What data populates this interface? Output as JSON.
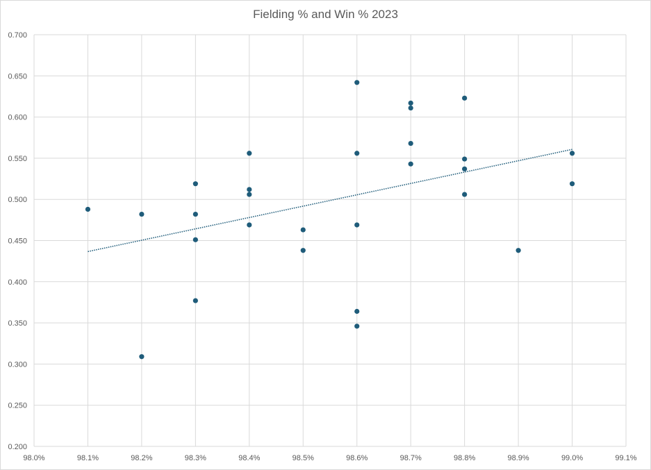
{
  "chart_data": {
    "type": "scatter",
    "title": "Fielding % and Win % 2023",
    "xlabel": "",
    "ylabel": "",
    "xlim": [
      98.0,
      99.1
    ],
    "ylim": [
      0.2,
      0.7
    ],
    "x_ticks": [
      "98.0%",
      "98.1%",
      "98.2%",
      "98.3%",
      "98.4%",
      "98.5%",
      "98.6%",
      "98.7%",
      "98.8%",
      "98.9%",
      "99.0%",
      "99.1%"
    ],
    "y_ticks": [
      "0.200",
      "0.250",
      "0.300",
      "0.350",
      "0.400",
      "0.450",
      "0.500",
      "0.550",
      "0.600",
      "0.650",
      "0.700"
    ],
    "grid": true,
    "legend": "none",
    "marker_color": "#1f5c7a",
    "trendline": {
      "type": "linear",
      "style": "dotted",
      "color": "#1f5c7a"
    },
    "series": [
      {
        "points": [
          {
            "x": 98.1,
            "y": 0.488
          },
          {
            "x": 98.2,
            "y": 0.482
          },
          {
            "x": 98.2,
            "y": 0.309
          },
          {
            "x": 98.3,
            "y": 0.519
          },
          {
            "x": 98.3,
            "y": 0.482
          },
          {
            "x": 98.3,
            "y": 0.451
          },
          {
            "x": 98.3,
            "y": 0.377
          },
          {
            "x": 98.4,
            "y": 0.556
          },
          {
            "x": 98.4,
            "y": 0.512
          },
          {
            "x": 98.4,
            "y": 0.506
          },
          {
            "x": 98.4,
            "y": 0.469
          },
          {
            "x": 98.5,
            "y": 0.463
          },
          {
            "x": 98.5,
            "y": 0.438
          },
          {
            "x": 98.6,
            "y": 0.642
          },
          {
            "x": 98.6,
            "y": 0.556
          },
          {
            "x": 98.6,
            "y": 0.469
          },
          {
            "x": 98.6,
            "y": 0.364
          },
          {
            "x": 98.6,
            "y": 0.346
          },
          {
            "x": 98.7,
            "y": 0.617
          },
          {
            "x": 98.7,
            "y": 0.611
          },
          {
            "x": 98.7,
            "y": 0.568
          },
          {
            "x": 98.7,
            "y": 0.543
          },
          {
            "x": 98.8,
            "y": 0.623
          },
          {
            "x": 98.8,
            "y": 0.549
          },
          {
            "x": 98.8,
            "y": 0.537
          },
          {
            "x": 98.8,
            "y": 0.506
          },
          {
            "x": 98.9,
            "y": 0.438
          },
          {
            "x": 99.0,
            "y": 0.556
          },
          {
            "x": 99.0,
            "y": 0.519
          }
        ]
      }
    ]
  }
}
